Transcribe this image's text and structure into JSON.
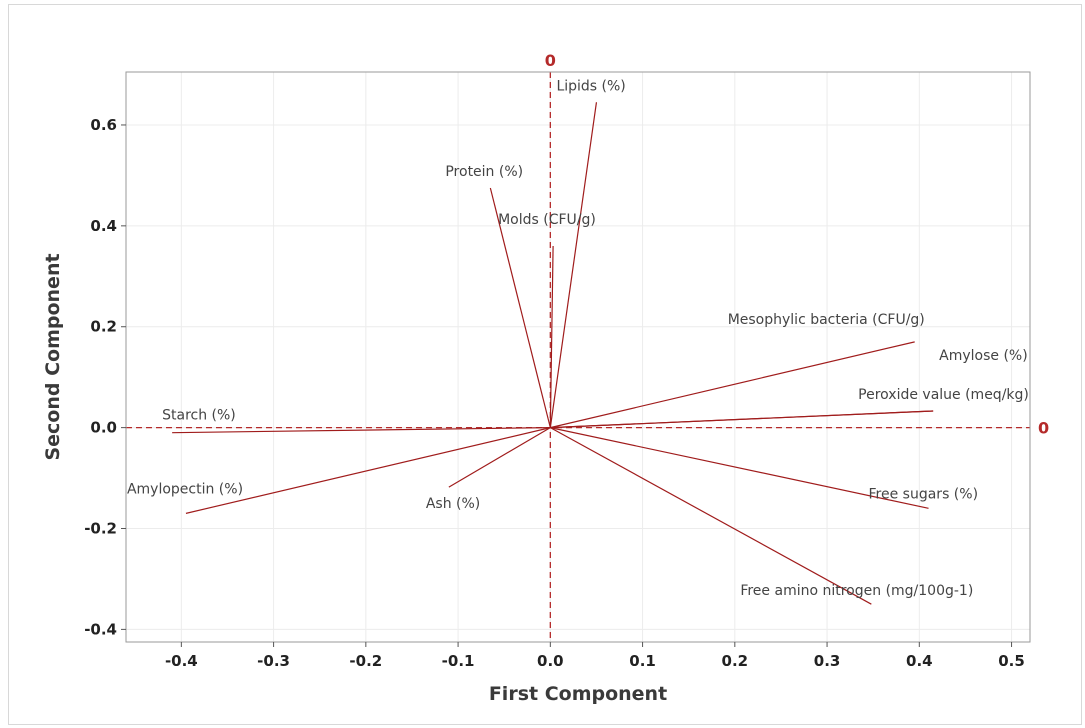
{
  "chart_data": {
    "type": "scatter",
    "subtype": "loading-plot",
    "xlabel": "First Component",
    "ylabel": "Second Component",
    "xlim": [
      -0.46,
      0.52
    ],
    "ylim": [
      -0.425,
      0.705
    ],
    "xticks": [
      -0.4,
      -0.3,
      -0.2,
      -0.1,
      0.0,
      0.1,
      0.2,
      0.3,
      0.4,
      0.5
    ],
    "xtick_labels": [
      "-0.4",
      "-0.3",
      "-0.2",
      "-0.1",
      "0.0",
      "0.1",
      "0.2",
      "0.3",
      "0.4",
      "0.5"
    ],
    "yticks": [
      -0.4,
      -0.2,
      0.0,
      0.2,
      0.4,
      0.6
    ],
    "ytick_labels": [
      "-0.4",
      "-0.2",
      "0.0",
      "0.2",
      "0.4",
      "0.6"
    ],
    "grid": true,
    "vector_color": "#a01c1c",
    "reference_color": "#b42a2a",
    "reference_lines": {
      "x": 0,
      "y": 0,
      "x_label": "0",
      "y_label": "0"
    },
    "loadings": [
      {
        "label": "Lipids (%)",
        "x": 0.05,
        "y": 0.645
      },
      {
        "label": "Protein (%)",
        "x": -0.065,
        "y": 0.475
      },
      {
        "label": "Molds (CFU/g)",
        "x": 0.003,
        "y": 0.36
      },
      {
        "label": "Mesophylic bacteria (CFU/g)",
        "x": 0.395,
        "y": 0.17
      },
      {
        "label": "Amylose (%)",
        "x": 0.415,
        "y": 0.033
      },
      {
        "label": "Peroxide value (meq/kg)",
        "x": 0.415,
        "y": 0.033
      },
      {
        "label": "Starch (%)",
        "x": -0.41,
        "y": -0.01
      },
      {
        "label": "Amylopectin (%)",
        "x": -0.395,
        "y": -0.17
      },
      {
        "label": "Ash (%)",
        "x": -0.11,
        "y": -0.118
      },
      {
        "label": "Free sugars (%)",
        "x": 0.41,
        "y": -0.16
      },
      {
        "label": "Free amino nitrogen (mg/100g-1)",
        "x": 0.348,
        "y": -0.35
      }
    ]
  }
}
